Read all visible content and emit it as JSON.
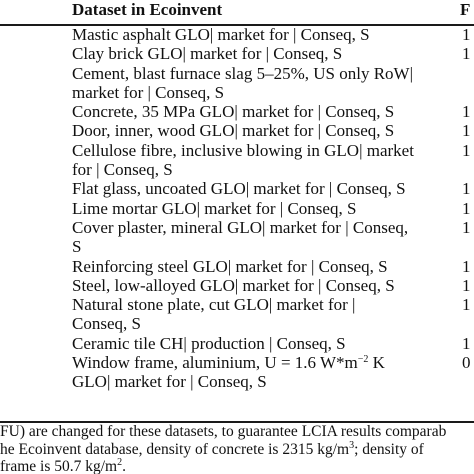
{
  "table": {
    "header": {
      "dataset": "Dataset in Ecoinvent",
      "second_column": "F"
    },
    "rows": [
      {
        "lines": [
          "Mastic asphalt GLO| market for | Conseq, S"
        ],
        "cut": "1"
      },
      {
        "lines": [
          "Clay brick GLO| market for | Conseq, S"
        ],
        "cut": "1"
      },
      {
        "lines": [
          "Cement, blast furnace slag 5–25%, US only RoW|",
          "market for | Conseq, S"
        ],
        "cut": ""
      },
      {
        "lines": [
          "Concrete, 35 MPa GLO| market for | Conseq, S"
        ],
        "cut": "1"
      },
      {
        "lines": [
          "Door, inner, wood GLO| market for | Conseq, S"
        ],
        "cut": "1"
      },
      {
        "lines": [
          "Cellulose fibre, inclusive blowing in GLO| market",
          "for | Conseq, S"
        ],
        "cut": "1"
      },
      {
        "lines": [
          "Flat glass, uncoated GLO| market for | Conseq, S"
        ],
        "cut": "1"
      },
      {
        "lines": [
          "Lime mortar GLO| market for | Conseq, S"
        ],
        "cut": "1"
      },
      {
        "lines": [
          "Cover plaster, mineral GLO| market for | Conseq,",
          "S"
        ],
        "cut": "1"
      },
      {
        "lines": [
          "Reinforcing steel GLO| market for | Conseq, S"
        ],
        "cut": "1"
      },
      {
        "lines": [
          "Steel, low-alloyed GLO| market for | Conseq, S"
        ],
        "cut": "1"
      },
      {
        "lines": [
          "Natural stone plate, cut GLO| market for |",
          "Conseq, S"
        ],
        "cut": "1"
      },
      {
        "lines": [
          "Ceramic tile CH| production | Conseq, S"
        ],
        "cut": "1"
      },
      {
        "lines": [
          "Window frame, aluminium, U = 1.6 W*m",
          "GLO| market for | Conseq, S"
        ],
        "sup": "−2",
        "sup_after": " K",
        "cut": "0"
      }
    ]
  },
  "footnote": {
    "line1": "FU) are changed for these datasets, to guarantee LCIA results comparab",
    "line2_pre": "he Ecoinvent database, density of concrete is 2315 kg/m",
    "line2_sup": "3",
    "line2_post": "; density of",
    "line3_pre": "frame is 50.7 kg/m",
    "line3_sup": "2",
    "line3_post": "."
  }
}
